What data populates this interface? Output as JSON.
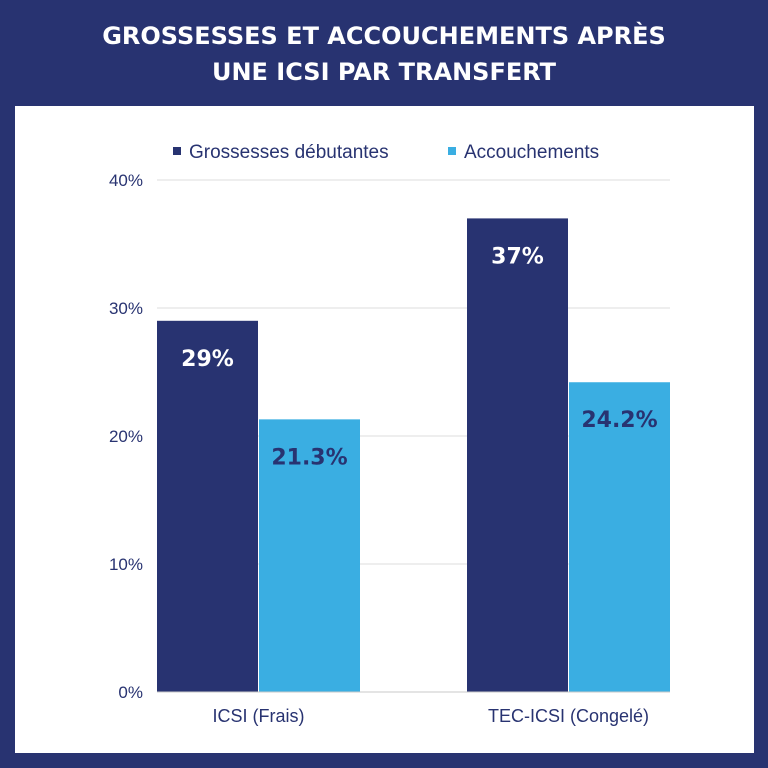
{
  "title": {
    "line1": "GROSSESSES ET ACCOUCHEMENTS APRÈS",
    "line2": "UNE ICSI PAR TRANSFERT"
  },
  "chart_data": {
    "type": "bar",
    "title": "GROSSESSES ET ACCOUCHEMENTS APRÈS UNE ICSI PAR TRANSFERT",
    "categories": [
      "ICSI (Frais)",
      "TEC-ICSI (Congelé)"
    ],
    "series": [
      {
        "name": "Grossesses débutantes",
        "values": [
          29,
          37
        ],
        "labels": [
          "29%",
          "37%"
        ],
        "color": "#283371",
        "label_color": "#ffffff"
      },
      {
        "name": "Accouchements",
        "values": [
          21.3,
          24.2
        ],
        "labels": [
          "21.3%",
          "24.2%"
        ],
        "color": "#3aaee2",
        "label_color": "#283371"
      }
    ],
    "ylim": [
      0,
      40
    ],
    "yticks": [
      0,
      10,
      20,
      30,
      40
    ],
    "ytick_labels": [
      "0%",
      "10%",
      "20%",
      "30%",
      "40%"
    ],
    "grid": true,
    "legend_position": "top"
  }
}
